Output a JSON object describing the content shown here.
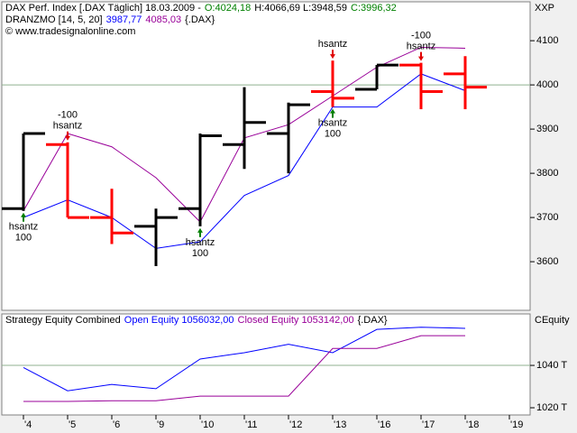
{
  "chart_data": [
    {
      "type": "ohlc",
      "header": [
        [
          {
            "text": "DAX Perf. Index [.DAX  Täglich] 18.03.2009 -",
            "color": "#000000"
          },
          {
            "text": "O:4024,18",
            "color": "#008000"
          },
          {
            "text": "H:4066,69 L:3948,59",
            "color": "#000000"
          },
          {
            "text": "C:3996,32",
            "color": "#008000"
          }
        ],
        [
          {
            "text": "DRANZMO [14, 5, 20]",
            "color": "#000000"
          },
          {
            "text": "3987,77",
            "color": "#0000ff"
          },
          {
            "text": "4085,03",
            "color": "#990099"
          },
          {
            "text": "{.DAX}",
            "color": "#000000"
          }
        ],
        [
          {
            "text": "© www.tradesignalonline.com",
            "color": "#000000"
          }
        ]
      ],
      "axis_label": "XXP",
      "categories": [
        "'4",
        "'5",
        "'6",
        "'9",
        "'10",
        "'11",
        "'12",
        "'13",
        "'16",
        "'17",
        "'18",
        "'19"
      ],
      "open": [
        3720,
        3865,
        3700,
        3680,
        3720,
        3865,
        3890,
        3985,
        3990,
        4045,
        4025,
        null
      ],
      "high": [
        3890,
        3870,
        3765,
        3720,
        3890,
        3995,
        3960,
        4055,
        4045,
        4050,
        4065,
        null
      ],
      "low": [
        3715,
        3700,
        3640,
        3590,
        3680,
        3810,
        3800,
        3950,
        3990,
        3945,
        3945,
        null
      ],
      "close": [
        3890,
        3700,
        3665,
        3700,
        3885,
        3915,
        3955,
        3970,
        4045,
        3985,
        3995,
        null
      ],
      "up_color": "#000000",
      "down_color": "#ff0000",
      "series": [
        {
          "color": "#0000ff",
          "values": [
            3700,
            3740,
            3700,
            3630,
            3645,
            3750,
            3795,
            3950,
            3950,
            4025,
            3987,
            null
          ]
        },
        {
          "color": "#990099",
          "values": [
            3715,
            3890,
            3860,
            3790,
            3690,
            3880,
            3910,
            3975,
            4040,
            4085,
            4083,
            null
          ]
        }
      ],
      "annotations": [
        {
          "category": "'4",
          "side": "below",
          "lines": [
            "hsantz",
            "100"
          ]
        },
        {
          "category": "'5",
          "side": "above",
          "lines": [
            "-100",
            "hsantz"
          ]
        },
        {
          "category": "'10",
          "side": "below",
          "lines": [
            "hsantz",
            "100"
          ]
        },
        {
          "category": "'13",
          "side": "above",
          "lines": [
            "hsantz"
          ]
        },
        {
          "category": "'13",
          "side": "below",
          "lines": [
            "hsantz",
            "100"
          ]
        },
        {
          "category": "'17",
          "side": "above",
          "lines": [
            "-100",
            "hsantz"
          ]
        }
      ],
      "ylim": [
        3490,
        4188
      ],
      "yticks": [
        3600,
        3700,
        3800,
        3900,
        4000,
        4100
      ],
      "gridlines": [
        4000
      ]
    },
    {
      "type": "line",
      "header": [
        [
          {
            "text": "Strategy Equity Combined",
            "color": "#000000"
          },
          {
            "text": "Open Equity 1056032,00",
            "color": "#0000ff"
          },
          {
            "text": "Closed Equity 1053142,00",
            "color": "#990099"
          },
          {
            "text": "{.DAX}",
            "color": "#000000"
          }
        ]
      ],
      "axis_label": "CEquity",
      "series": [
        {
          "color": "#0000ff",
          "values": [
            1039,
            1028,
            1031,
            1029,
            1043,
            1046,
            1050,
            1046,
            1057,
            1058,
            1057.5,
            null
          ]
        },
        {
          "color": "#990099",
          "values": [
            1023,
            1023,
            1023.3,
            1023.3,
            1025.5,
            1025.5,
            1025.5,
            1048,
            1048,
            1054,
            1054,
            null
          ]
        }
      ],
      "ylim": [
        1016.6,
        1064.3
      ],
      "yticks": [
        {
          "value": 1020,
          "label": "1020 T"
        },
        {
          "value": 1040,
          "label": "1040 T"
        }
      ],
      "gridlines": [
        1040
      ]
    }
  ]
}
